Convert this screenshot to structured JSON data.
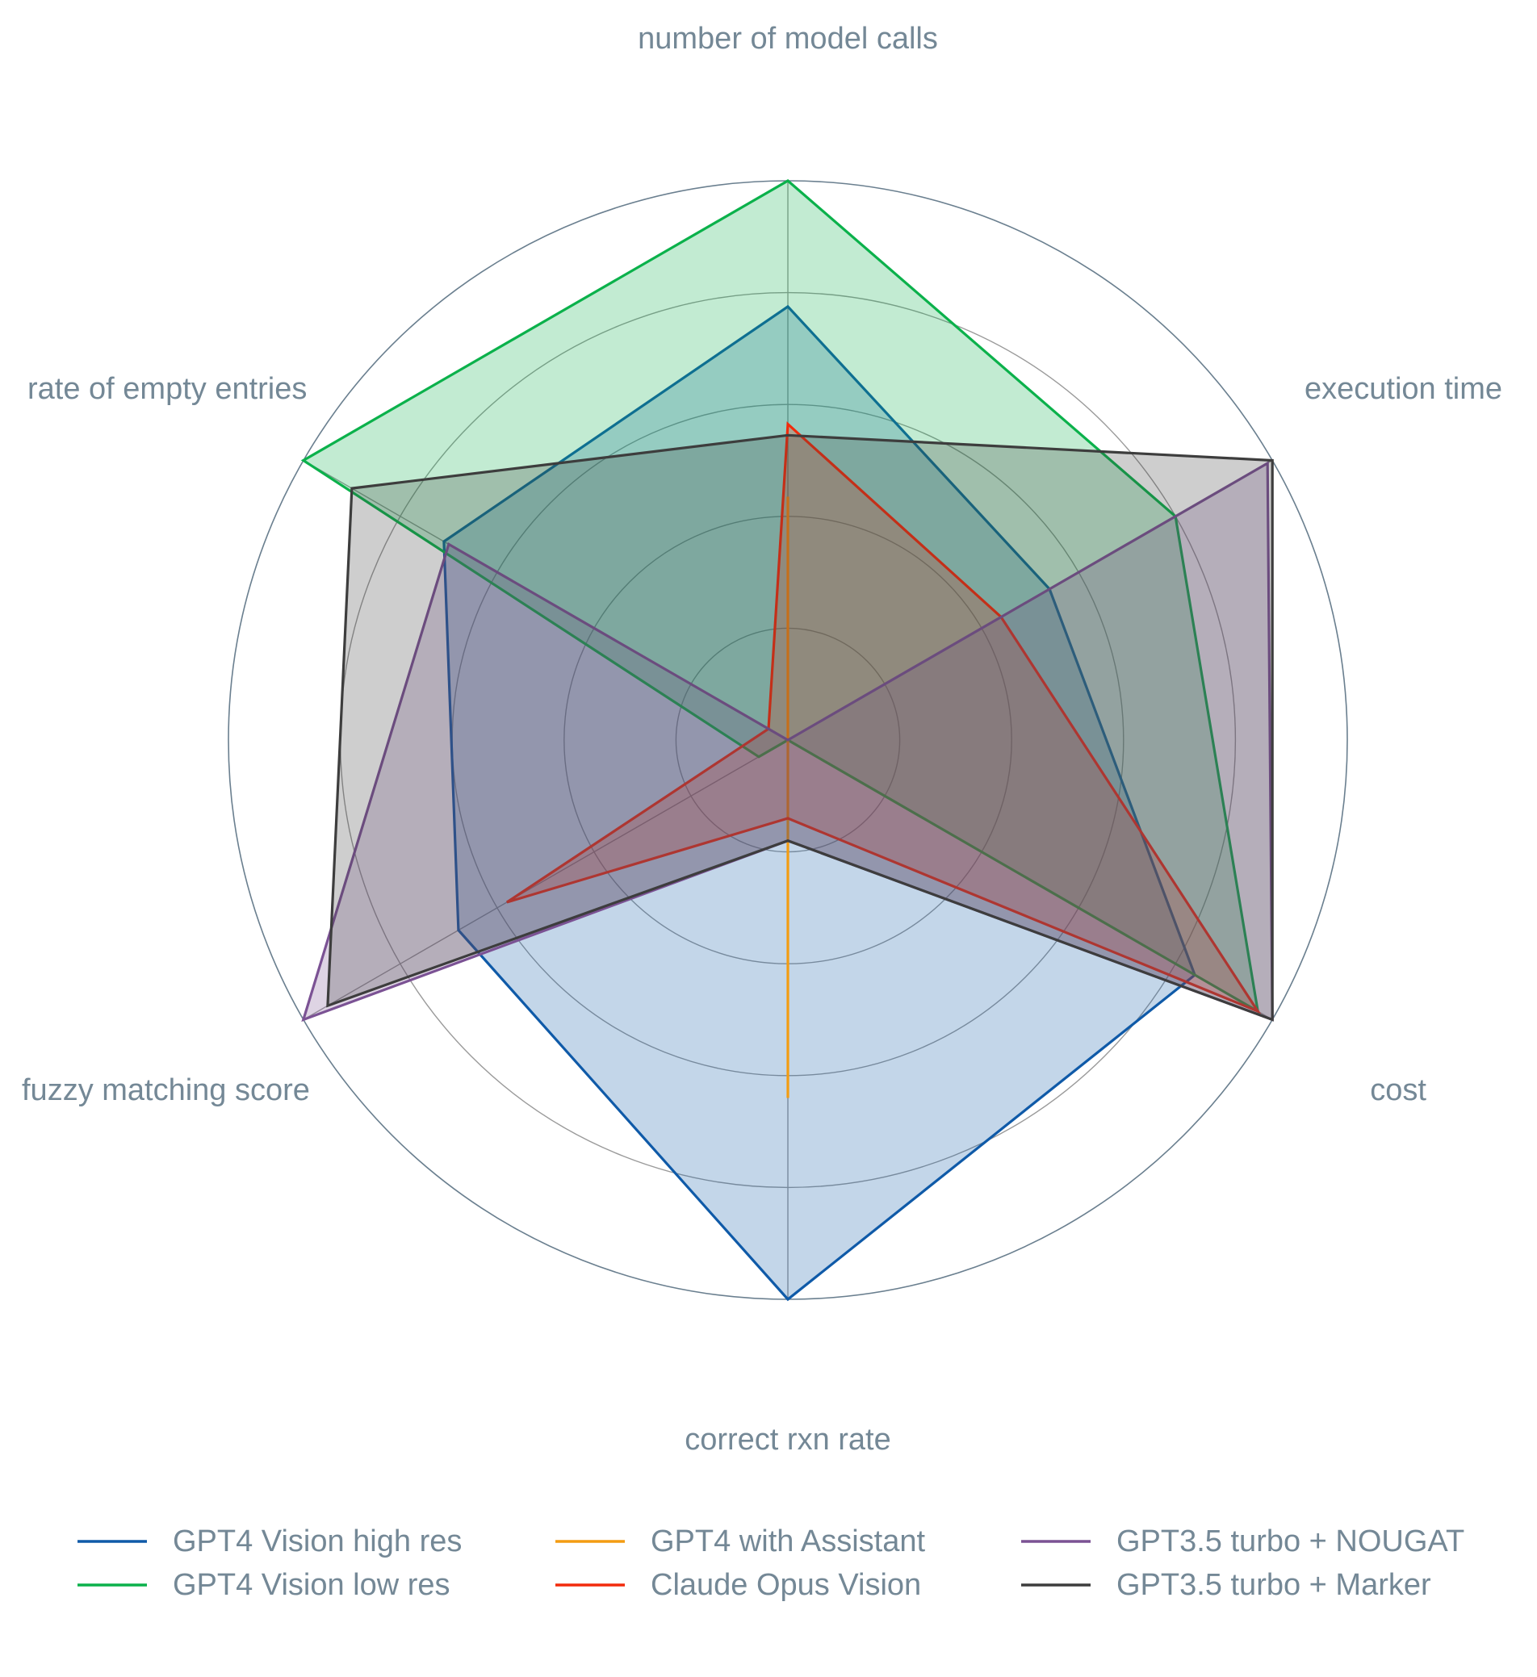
{
  "chart_data": {
    "type": "radar",
    "title": "",
    "range": [
      0,
      1
    ],
    "ring_values": [
      0.2,
      0.4,
      0.6,
      0.8,
      1.0
    ],
    "axes": [
      "number of model calls",
      "execution time",
      "cost",
      "correct rxn rate",
      "fuzzy matching score",
      "rate of empty entries"
    ],
    "series": [
      {
        "name": "GPT4 Vision high res",
        "color": "#0f5aa8",
        "fill": true,
        "values": [
          0.775,
          0.54,
          0.84,
          1.0,
          0.68,
          0.71
        ]
      },
      {
        "name": "GPT4 Vision low res",
        "color": "#0bb14b",
        "fill": true,
        "values": [
          1.0,
          0.8,
          0.97,
          0.0,
          0.06,
          1.0
        ]
      },
      {
        "name": "GPT4 with Assistant",
        "color": "#f39c12",
        "fill": false,
        "values": [
          0.435,
          0.0,
          0.0,
          0.64,
          0.0,
          0.0
        ]
      },
      {
        "name": "Claude Opus Vision",
        "color": "#f22b0c",
        "fill": true,
        "values": [
          0.565,
          0.44,
          0.97,
          0.14,
          0.58,
          0.04
        ]
      },
      {
        "name": "GPT3.5 turbo + NOUGAT",
        "color": "#7b5294",
        "fill": true,
        "values": [
          0.0,
          0.99,
          1.0,
          0.18,
          1.0,
          0.7
        ]
      },
      {
        "name": "GPT3.5 turbo + Marker",
        "color": "#3d3d3d",
        "fill": true,
        "values": [
          0.545,
          1.0,
          1.0,
          0.18,
          0.95,
          0.9
        ]
      }
    ],
    "legend_placement": "bottom",
    "grid": true
  }
}
